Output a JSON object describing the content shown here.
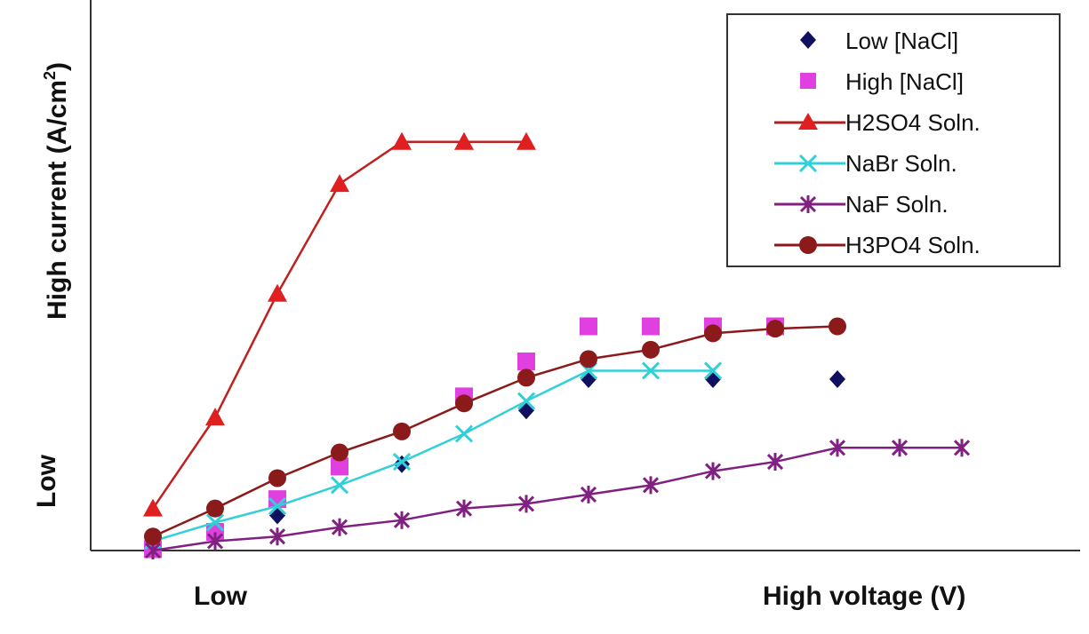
{
  "chart_data": {
    "type": "scatter",
    "title": "",
    "xlabel_low": "Low",
    "xlabel_high": "High voltage (V)",
    "ylabel_low": "Low",
    "ylabel_high_prefix": "High current (A/cm",
    "ylabel_high_sup": "2",
    "ylabel_high_suffix": ")",
    "x": [
      1,
      2,
      3,
      4,
      5,
      6,
      7,
      8,
      9,
      10,
      11,
      12,
      13,
      14
    ],
    "xlim": [
      0,
      14.5
    ],
    "ylim": [
      0,
      100
    ],
    "series": [
      {
        "name": "Low [NaCl]",
        "marker": "diamond",
        "line": false,
        "color": "#101060",
        "points": [
          [
            1,
            0.6
          ],
          [
            2,
            4.3
          ],
          [
            3,
            7.5
          ],
          [
            5,
            18.5
          ],
          [
            7,
            30
          ],
          [
            8,
            36.7
          ],
          [
            10,
            36.7
          ],
          [
            12,
            36.7
          ]
        ]
      },
      {
        "name": "High [NaCl]",
        "marker": "square",
        "line": false,
        "color": "#e040e0",
        "points": [
          [
            1,
            0.3
          ],
          [
            2,
            4
          ],
          [
            3,
            11
          ],
          [
            4,
            18
          ],
          [
            6,
            33
          ],
          [
            7,
            40.5
          ],
          [
            8,
            48
          ],
          [
            9,
            48
          ],
          [
            10,
            48
          ],
          [
            11,
            48
          ]
        ]
      },
      {
        "name": "H2SO4 Soln.",
        "marker": "triangle",
        "line": true,
        "color": "#e02020",
        "points": [
          [
            1,
            9
          ],
          [
            2,
            28.5
          ],
          [
            3,
            55
          ],
          [
            4,
            78.5
          ],
          [
            5,
            87.5
          ],
          [
            6,
            87.5
          ],
          [
            7,
            87.5
          ]
        ]
      },
      {
        "name": "NaBr Soln.",
        "marker": "x",
        "line": true,
        "color": "#30d0d8",
        "points": [
          [
            1,
            2
          ],
          [
            2,
            6
          ],
          [
            3,
            9.5
          ],
          [
            4,
            14
          ],
          [
            5,
            19
          ],
          [
            6,
            25
          ],
          [
            7,
            32
          ],
          [
            8,
            38.5
          ],
          [
            9,
            38.5
          ],
          [
            10,
            38.5
          ]
        ]
      },
      {
        "name": "NaF Soln.",
        "marker": "asterisk",
        "line": true,
        "color": "#802080",
        "points": [
          [
            1,
            0
          ],
          [
            2,
            2
          ],
          [
            3,
            3
          ],
          [
            4,
            5
          ],
          [
            5,
            6.5
          ],
          [
            6,
            9
          ],
          [
            7,
            10
          ],
          [
            8,
            12
          ],
          [
            9,
            14
          ],
          [
            10,
            17
          ],
          [
            11,
            19
          ],
          [
            12,
            22
          ],
          [
            13,
            22
          ],
          [
            14,
            22
          ]
        ]
      },
      {
        "name": "H3PO4 Soln.",
        "marker": "circle",
        "line": true,
        "color": "#8b1a1a",
        "points": [
          [
            1,
            3
          ],
          [
            2,
            9
          ],
          [
            3,
            15.5
          ],
          [
            4,
            21
          ],
          [
            5,
            25.5
          ],
          [
            6,
            31.5
          ],
          [
            7,
            37
          ],
          [
            8,
            41
          ],
          [
            9,
            43
          ],
          [
            10,
            46.5
          ],
          [
            11,
            47.5
          ],
          [
            12,
            48
          ]
        ]
      }
    ],
    "legend_position": "top-right"
  }
}
